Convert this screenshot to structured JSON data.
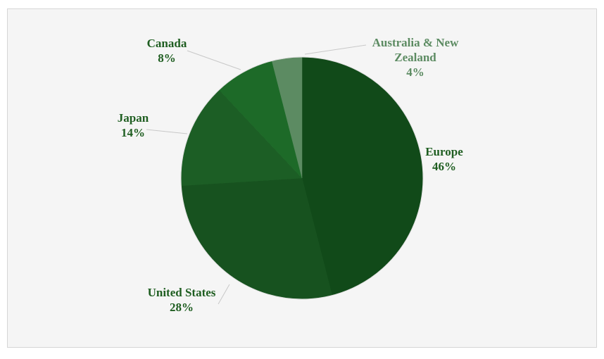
{
  "chart_data": {
    "type": "pie",
    "categories": [
      "Europe",
      "United States",
      "Japan",
      "Canada",
      "Australia & New Zealand"
    ],
    "values": [
      46,
      28,
      14,
      8,
      4
    ],
    "value_labels": [
      "46%",
      "28%",
      "14%",
      "8%",
      "4%"
    ],
    "colors": [
      "#114a19",
      "#17521f",
      "#1c5e25",
      "#1d6a28",
      "#5c8b62"
    ]
  }
}
